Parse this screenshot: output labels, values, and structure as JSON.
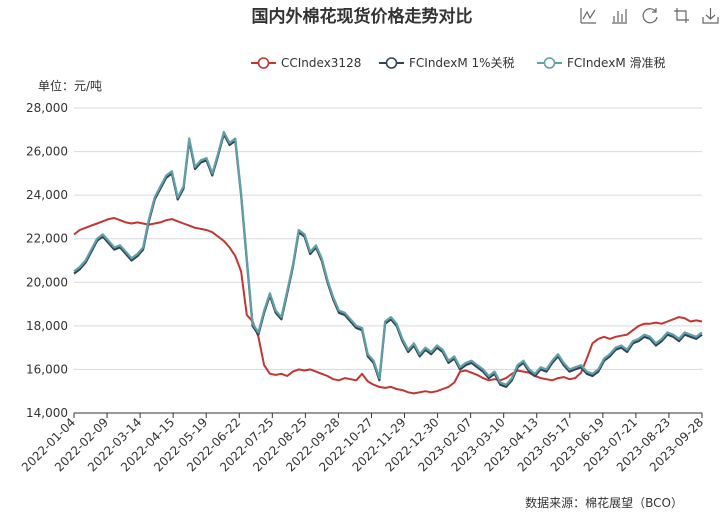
{
  "chart_data": {
    "type": "line",
    "title": "国内外棉花现货价格走势对比",
    "unit": "单位：元/吨",
    "source": "数据来源：棉花展望（BCO）",
    "ylim": [
      14000,
      28000
    ],
    "y_ticks": [
      "14,000",
      "16,000",
      "18,000",
      "20,000",
      "22,000",
      "24,000",
      "26,000",
      "28,000"
    ],
    "y_tick_values": [
      14000,
      16000,
      18000,
      20000,
      22000,
      24000,
      26000,
      28000
    ],
    "grid": true,
    "legend_position": "top-right",
    "x_labels": [
      "2022-01-04",
      "2022-02-09",
      "2022-03-14",
      "2022-04-15",
      "2022-05-19",
      "2022-06-22",
      "2022-07-25",
      "2022-08-25",
      "2022-09-28",
      "2022-10-27",
      "2022-11-29",
      "2022-12-30",
      "2023-02-07",
      "2023-03-10",
      "2023-04-13",
      "2023-05-17",
      "2023-06-19",
      "2023-07-21",
      "2023-08-23",
      "2023-09-28"
    ],
    "series": [
      {
        "name": "CCIndex3128",
        "color": "#c23531",
        "values": [
          22200,
          22400,
          22500,
          22600,
          22700,
          22800,
          22900,
          22950,
          22850,
          22750,
          22700,
          22750,
          22700,
          22650,
          22700,
          22750,
          22850,
          22900,
          22800,
          22700,
          22600,
          22500,
          22450,
          22400,
          22300,
          22100,
          21900,
          21600,
          21200,
          20500,
          18500,
          18200,
          17500,
          16200,
          15800,
          15750,
          15800,
          15700,
          15900,
          16000,
          15950,
          16000,
          15900,
          15800,
          15700,
          15550,
          15500,
          15600,
          15550,
          15500,
          15800,
          15450,
          15300,
          15200,
          15150,
          15200,
          15100,
          15050,
          14950,
          14900,
          14950,
          15000,
          14950,
          15000,
          15100,
          15200,
          15400,
          15900,
          15950,
          15850,
          15750,
          15600,
          15500,
          15550,
          15500,
          15600,
          15800,
          15950,
          15900,
          15850,
          15700,
          15600,
          15550,
          15500,
          15600,
          15650,
          15550,
          15600,
          15850,
          16500,
          17200,
          17400,
          17500,
          17400,
          17500,
          17550,
          17600,
          17800,
          18000,
          18100,
          18100,
          18150,
          18100,
          18200,
          18300,
          18400,
          18350,
          18200,
          18250,
          18200
        ]
      },
      {
        "name": "FCIndexM 1%关税",
        "color": "#2f4554",
        "values": [
          20400,
          20600,
          20900,
          21400,
          21900,
          22100,
          21800,
          21500,
          21600,
          21300,
          21000,
          21200,
          21500,
          22800,
          23800,
          24300,
          24800,
          25000,
          23800,
          24300,
          26500,
          25200,
          25500,
          25600,
          24900,
          25800,
          26800,
          26300,
          26500,
          24000,
          21000,
          18000,
          17600,
          18600,
          19400,
          18600,
          18300,
          19500,
          20700,
          22300,
          22100,
          21300,
          21600,
          21000,
          20000,
          19200,
          18600,
          18500,
          18200,
          17900,
          17800,
          16600,
          16300,
          15500,
          18100,
          18300,
          18000,
          17300,
          16800,
          17100,
          16600,
          16900,
          16700,
          17000,
          16800,
          16300,
          16500,
          16000,
          16200,
          16300,
          16100,
          15900,
          15600,
          15800,
          15300,
          15200,
          15500,
          16100,
          16300,
          15900,
          15700,
          16000,
          15900,
          16300,
          16600,
          16200,
          15900,
          16000,
          16100,
          15800,
          15700,
          15900,
          16400,
          16600,
          16900,
          17000,
          16800,
          17200,
          17300,
          17500,
          17400,
          17100,
          17300,
          17600,
          17500,
          17300,
          17600,
          17500,
          17400,
          17600
        ]
      },
      {
        "name": "FCIndexM 滑准税",
        "color": "#61a0a8",
        "values": [
          20500,
          20700,
          21000,
          21500,
          22000,
          22200,
          21900,
          21600,
          21700,
          21400,
          21100,
          21300,
          21600,
          22900,
          23900,
          24400,
          24900,
          25100,
          23900,
          24400,
          26600,
          25300,
          25600,
          25700,
          25000,
          25900,
          26900,
          26400,
          26600,
          24100,
          21100,
          18100,
          17700,
          18700,
          19500,
          18700,
          18400,
          19600,
          20800,
          22400,
          22200,
          21400,
          21700,
          21100,
          20100,
          19300,
          18700,
          18600,
          18300,
          18000,
          17900,
          16700,
          16400,
          15600,
          18200,
          18400,
          18100,
          17400,
          16900,
          17200,
          16700,
          17000,
          16800,
          17100,
          16900,
          16400,
          16600,
          16100,
          16300,
          16400,
          16200,
          16000,
          15700,
          15900,
          15400,
          15300,
          15600,
          16200,
          16400,
          16000,
          15800,
          16100,
          16000,
          16400,
          16700,
          16300,
          16000,
          16100,
          16200,
          15900,
          15800,
          16000,
          16500,
          16700,
          17000,
          17100,
          16900,
          17300,
          17400,
          17600,
          17500,
          17200,
          17400,
          17700,
          17600,
          17400,
          17700,
          17600,
          17500,
          17700
        ]
      }
    ]
  },
  "toolbox": {
    "icons": [
      "line-chart-icon",
      "bar-chart-icon",
      "restore-icon",
      "crop-icon",
      "download-icon"
    ]
  }
}
